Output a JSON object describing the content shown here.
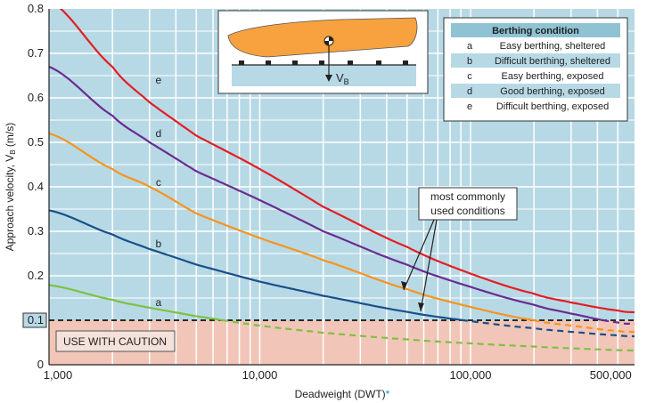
{
  "chart_data": {
    "type": "line",
    "title": "",
    "xlabel": "Deadweight (DWT)",
    "xlabel_marker": "*",
    "ylabel": "Approach velocity, V",
    "ylabel_sub": "B",
    "ylabel_unit": " (m/s)",
    "xscale": "log",
    "xlim": [
      1000,
      600000
    ],
    "ylim": [
      0,
      0.8
    ],
    "x_ticks": [
      {
        "value": 1000,
        "label": "1,000"
      },
      {
        "value": 10000,
        "label": "10,000"
      },
      {
        "value": 100000,
        "label": "100,000"
      },
      {
        "value": 500000,
        "label": "500,000"
      }
    ],
    "y_ticks": [
      {
        "value": 0,
        "label": "0"
      },
      {
        "value": 0.1,
        "label": "0.1",
        "boxed": true
      },
      {
        "value": 0.2,
        "label": "0.2"
      },
      {
        "value": 0.3,
        "label": "0.3"
      },
      {
        "value": 0.4,
        "label": "0.4"
      },
      {
        "value": 0.5,
        "label": "0.5"
      },
      {
        "value": 0.6,
        "label": "0.6"
      },
      {
        "value": 0.7,
        "label": "0.7"
      },
      {
        "value": 0.8,
        "label": "0.8"
      }
    ],
    "threshold": 0.1,
    "caution_text": "USE WITH CAUTION",
    "series": [
      {
        "name": "a",
        "label": "Easy berthing, sheltered",
        "color": "#7dc142",
        "x": [
          1000,
          2000,
          3000,
          5000,
          10000,
          20000,
          50000,
          100000,
          200000,
          300000,
          500000,
          600000
        ],
        "y": [
          0.179,
          0.146,
          0.128,
          0.109,
          0.088,
          0.072,
          0.057,
          0.048,
          0.041,
          0.037,
          0.033,
          0.032
        ]
      },
      {
        "name": "b",
        "label": "Difficult berthing, sheltered",
        "color": "#1a4f8b",
        "x": [
          1000,
          2000,
          3000,
          5000,
          10000,
          20000,
          50000,
          100000,
          200000,
          300000,
          500000,
          600000
        ],
        "y": [
          0.347,
          0.293,
          0.26,
          0.225,
          0.187,
          0.155,
          0.119,
          0.098,
          0.082,
          0.074,
          0.066,
          0.064
        ]
      },
      {
        "name": "c",
        "label": "Easy berthing, exposed",
        "color": "#f7941d",
        "x": [
          1000,
          2000,
          3000,
          5000,
          10000,
          20000,
          50000,
          100000,
          200000,
          300000,
          500000,
          600000
        ],
        "y": [
          0.52,
          0.44,
          0.4,
          0.34,
          0.285,
          0.235,
          0.17,
          0.13,
          0.1,
          0.088,
          0.076,
          0.074
        ]
      },
      {
        "name": "d",
        "label": "Good berthing, exposed",
        "color": "#6a2c91",
        "x": [
          1000,
          2000,
          3000,
          5000,
          10000,
          20000,
          50000,
          100000,
          200000,
          300000,
          500000,
          600000
        ],
        "y": [
          0.67,
          0.56,
          0.5,
          0.435,
          0.37,
          0.3,
          0.225,
          0.175,
          0.135,
          0.115,
          0.095,
          0.092
        ]
      },
      {
        "name": "e",
        "label": "Difficult berthing, exposed",
        "color": "#e31e24",
        "x": [
          1000,
          2000,
          3000,
          5000,
          10000,
          20000,
          50000,
          100000,
          200000,
          300000,
          500000,
          600000
        ],
        "y": [
          0.82,
          0.67,
          0.59,
          0.515,
          0.44,
          0.355,
          0.265,
          0.205,
          0.16,
          0.14,
          0.122,
          0.118
        ]
      }
    ],
    "curve_labels": [
      {
        "name": "a",
        "x": 3000,
        "y": 0.14
      },
      {
        "name": "b",
        "x": 3000,
        "y": 0.272
      },
      {
        "name": "c",
        "x": 3000,
        "y": 0.41
      },
      {
        "name": "d",
        "x": 3000,
        "y": 0.52
      },
      {
        "name": "e",
        "x": 3000,
        "y": 0.64
      }
    ],
    "legend": {
      "title": "Berthing condition",
      "position": "top-right"
    },
    "annotation": {
      "text_lines": [
        "most commonly",
        "used conditions"
      ]
    },
    "inset": {
      "velocity_symbol": "V",
      "velocity_sub": "B"
    }
  },
  "colors": {
    "plot_bg": "#b7d9e5",
    "caution_bg": "#f1c6b8",
    "grid": "#ffffff",
    "legend_header": "#8fc3d4",
    "legend_alt_row": "#b7d9e5",
    "ship": "#f7a13f",
    "water": "#b7d9e5",
    "asterisk": "#0099cc"
  }
}
